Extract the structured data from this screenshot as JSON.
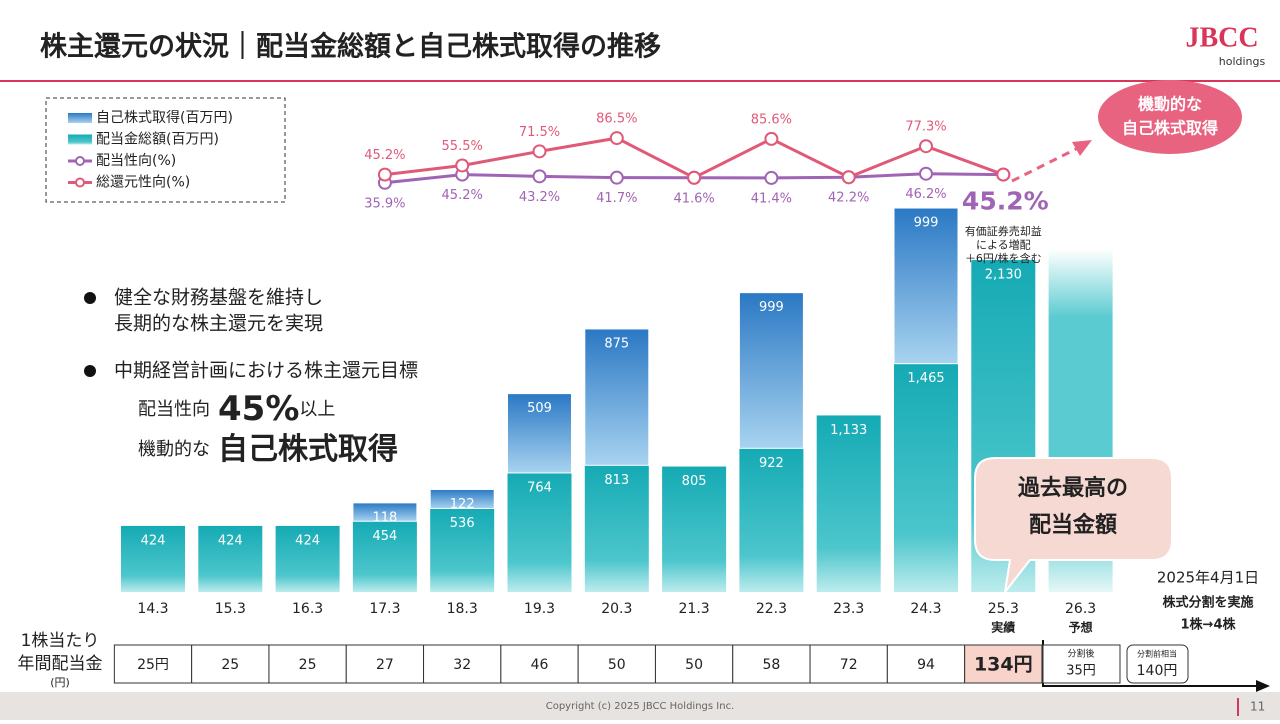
{
  "header": {
    "title": "株主還元の状況｜配当金総額と自己株式取得の推移",
    "logo": "JBCC",
    "logo_sub": "holdings"
  },
  "chart_data": {
    "type": "bar",
    "categories": [
      "14.3",
      "15.3",
      "16.3",
      "17.3",
      "18.3",
      "19.3",
      "20.3",
      "21.3",
      "22.3",
      "23.3",
      "24.3",
      "25.3",
      "26.3"
    ],
    "actual_label": "実績",
    "forecast_label": "予想",
    "ylim": [
      0,
      2400
    ],
    "y2lim": [
      30,
      90
    ],
    "series": [
      {
        "name": "配当金総額(百万円)",
        "color": "#1bb0b8",
        "values": [
          424,
          424,
          424,
          454,
          536,
          764,
          813,
          805,
          922,
          1133,
          1465,
          2130,
          2200
        ],
        "value_labels": [
          "424",
          "424",
          "424",
          "454",
          "536",
          "764",
          "813",
          "805",
          "922",
          "1,133",
          "1,465",
          "2,130",
          null
        ]
      },
      {
        "name": "自己株式取得(百万円)",
        "color": "#2f80c8",
        "values": [
          null,
          null,
          null,
          118,
          122,
          509,
          875,
          null,
          999,
          null,
          999,
          null,
          null
        ],
        "value_labels": [
          null,
          null,
          null,
          "118",
          "122",
          "509",
          "875",
          null,
          "999",
          null,
          "999",
          null,
          null
        ]
      },
      {
        "name": "配当性向(%)",
        "color": "#a064b4",
        "type": "line",
        "axis": "y2",
        "values": [
          null,
          null,
          null,
          35.9,
          45.2,
          43.2,
          41.7,
          41.6,
          41.4,
          42.2,
          46.2,
          45.2,
          null
        ],
        "value_labels": [
          null,
          null,
          null,
          "35.9%",
          "45.2%",
          "43.2%",
          "41.7%",
          "41.6%",
          "41.4%",
          "42.2%",
          "46.2%",
          "45.2%",
          null
        ]
      },
      {
        "name": "総還元性向(%)",
        "color": "#e05a78",
        "type": "line",
        "axis": "y2",
        "values": [
          null,
          null,
          null,
          45.2,
          55.5,
          71.5,
          86.5,
          41.6,
          85.6,
          42.2,
          77.3,
          45.2,
          null
        ],
        "value_labels": [
          null,
          null,
          null,
          "45.2%",
          "55.5%",
          "71.5%",
          "86.5%",
          null,
          "85.6%",
          null,
          "77.3%",
          null,
          null
        ]
      }
    ],
    "legend_order": [
      1,
      0,
      2,
      3
    ],
    "note": [
      "有価証券売却益",
      "による増配",
      "＋6円/株を含む"
    ]
  },
  "callout": [
    "機動的な",
    "自己株式取得"
  ],
  "bullets": [
    "健全な財務基盤を維持し",
    "長期的な株主還元を実現",
    "中期経営計画における株主還元目標"
  ],
  "target1": [
    "配当性向",
    "45%",
    "以上"
  ],
  "target2": [
    "機動的な",
    "自己株式取得"
  ],
  "bubble": [
    "過去最高の",
    "配当金額"
  ],
  "split": [
    "2025年4月1日",
    "株式分割を実施",
    "1株→4株"
  ],
  "dividend_table": {
    "label": [
      "1株当たり",
      "年間配当金"
    ],
    "unit": "(円)",
    "cells": [
      "25円",
      "25",
      "25",
      "27",
      "32",
      "46",
      "50",
      "50",
      "58",
      "72",
      "94",
      "134円"
    ],
    "after_split": {
      "label": "分割後",
      "value": "35円"
    },
    "pre_split": {
      "label": "分割前相当",
      "value": "140円"
    }
  },
  "footer": {
    "copyright": "Copyright (c) 2025 JBCC Holdings Inc.",
    "page": "11"
  }
}
